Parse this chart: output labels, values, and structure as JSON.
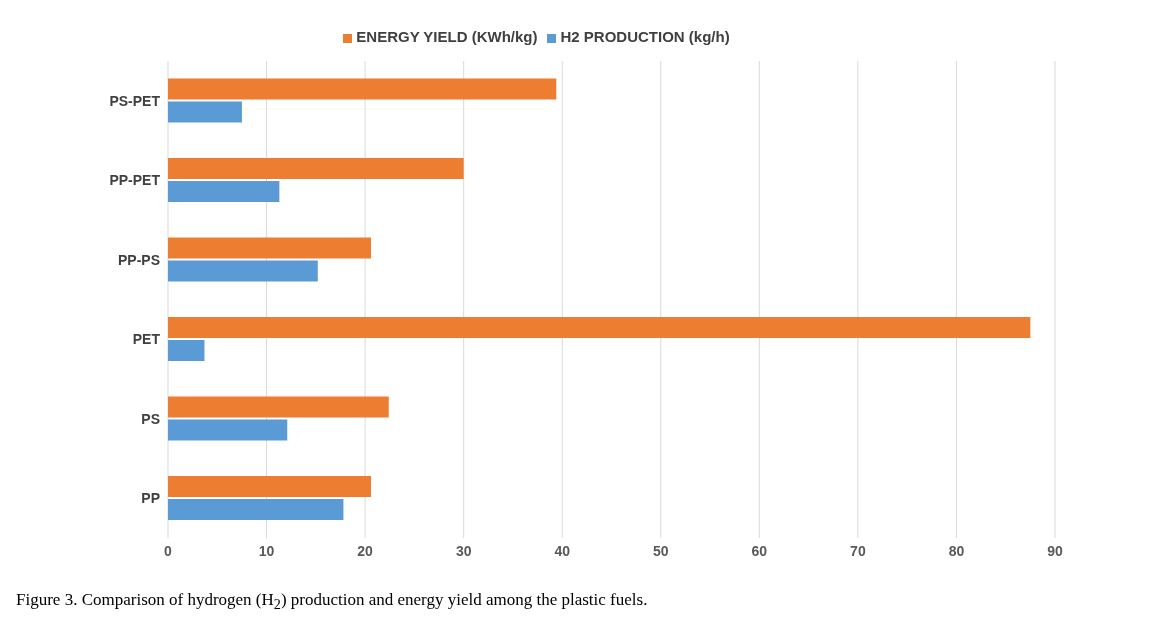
{
  "chart_data": {
    "type": "bar",
    "orientation": "horizontal",
    "categories": [
      "PS-PET",
      "PP-PET",
      "PP-PS",
      "PET",
      "PS",
      "PP"
    ],
    "series": [
      {
        "name": "ENERGY YIELD (KWh/kg)",
        "color": "#ed7d31",
        "values": [
          39.4,
          30.0,
          20.6,
          87.5,
          22.4,
          20.6
        ]
      },
      {
        "name": "H2 PRODUCTION (kg/h)",
        "color": "#5b9bd5",
        "values": [
          7.5,
          11.3,
          15.2,
          3.7,
          12.1,
          17.8
        ]
      }
    ],
    "xlim": [
      0,
      90
    ],
    "xticks": [
      0,
      10,
      20,
      30,
      40,
      50,
      60,
      70,
      80,
      90
    ],
    "grid": "x",
    "legend": "top",
    "annotations": [
      "Figure 3. Comparison of hydrogen (H$_{2}$) production and energy yield among the plastic fuels."
    ]
  }
}
